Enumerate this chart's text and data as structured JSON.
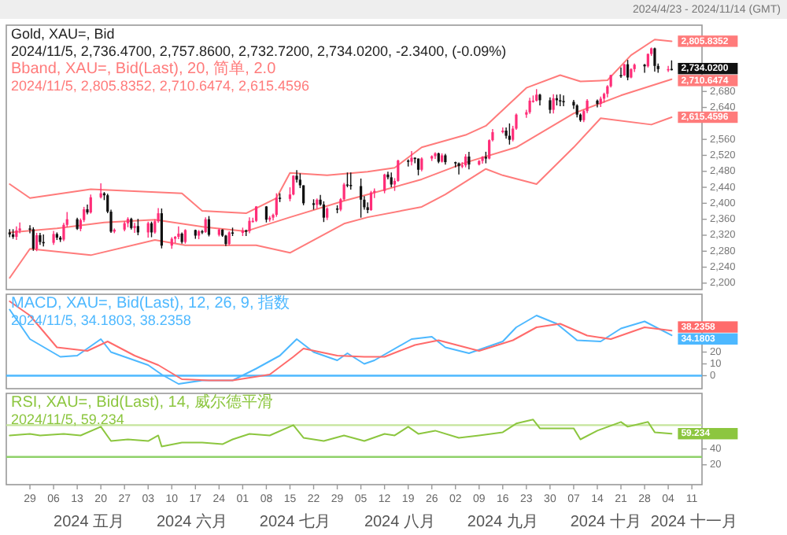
{
  "chart_data": [
    {
      "type": "candlestick",
      "title": "Gold, XAU=, Bid",
      "subtitle": "2024/11/5, 2,736.4700, 2,757.8600, 2,732.7200, 2,734.0200, -2.3400, (-0.09%)",
      "annotations": [
        "Bband, XAU=, Bid(Last), 20, 简单, 2.0",
        "2024/11/5, 2,805.8352, 2,710.6474, 2,615.4596",
        "2024/4/23 - 2024/11/14 (GMT)"
      ],
      "colors": [
        "#111111",
        "#111111",
        "#ff2d78",
        "#ff2d78",
        "#111111",
        "#111111",
        "#ff2d78",
        "#111111",
        "#111111",
        "#ff2d78",
        "#111111",
        "#111111",
        "#ff2d78",
        "#ff2d78",
        "#111111",
        "#ff2d78",
        "#ff2d78",
        "#111111",
        "#ff2d78",
        "#ff2d78",
        "#111111",
        "#111111",
        "#111111",
        "#ff2d78",
        "#ff2d78",
        "#ff2d78",
        "#111111",
        "#ff2d78",
        "#111111",
        "#ff2d78",
        "#111111",
        "#ff2d78",
        "#ff2d78",
        "#111111",
        "#ff2d78",
        "#ff2d78",
        "#ff2d78",
        "#111111",
        "#ff2d78",
        "#111111",
        "#ff2d78",
        "#111111",
        "#ff2d78",
        "#111111",
        "#ff2d78",
        "#111111",
        "#111111",
        "#ff2d78",
        "#111111",
        "#ff2d78",
        "#111111",
        "#ff2d78",
        "#ff2d78",
        "#ff2d78",
        "#111111",
        "#ff2d78",
        "#ff2d78",
        "#ff2d78",
        "#111111",
        "#ff2d78",
        "#ff2d78",
        "#111111",
        "#111111",
        "#111111",
        "#111111",
        "#ff2d78",
        "#111111",
        "#111111",
        "#ff2d78",
        "#111111",
        "#ff2d78",
        "#ff2d78",
        "#111111",
        "#111111",
        "#111111",
        "#111111",
        "#111111",
        "#ff2d78",
        "#ff2d78",
        "#ff2d78",
        "#111111",
        "#111111",
        "#ff2d78",
        "#ff2d78",
        "#111111",
        "#ff2d78",
        "#111111",
        "#111111",
        "#ff2d78",
        "#ff2d78",
        "#ff2d78",
        "#111111",
        "#ff2d78",
        "#111111",
        "#111111",
        "#111111",
        "#ff2d78",
        "#ff2d78",
        "#111111",
        "#ff2d78",
        "#ff2d78",
        "#111111",
        "#ff2d78",
        "#ff2d78",
        "#ff2d78",
        "#111111",
        "#111111",
        "#ff2d78",
        "#ff2d78",
        "#ff2d78",
        "#ff2d78",
        "#ff2d78",
        "#ff2d78",
        "#111111",
        "#111111",
        "#ff2d78",
        "#111111",
        "#111111",
        "#111111",
        "#111111",
        "#111111",
        "#111111",
        "#ff2d78",
        "#ff2d78",
        "#111111",
        "#ff2d78",
        "#ff2d78",
        "#ff2d78",
        "#ff2d78",
        "#111111",
        "#ff2d78",
        "#111111",
        "#ff2d78",
        "#ff2d78",
        "#111111",
        "#ff2d78",
        "#ff2d78",
        "#111111",
        "#111111",
        "#ff2d78",
        "#111111"
      ],
      "value_labels": [
        null,
        null,
        null,
        null,
        null,
        null,
        null,
        null,
        null,
        null,
        null,
        null,
        null,
        null,
        null,
        null,
        null,
        null,
        null,
        null,
        null,
        null,
        null,
        null,
        null,
        null,
        null,
        null,
        null,
        null,
        null,
        null,
        null,
        null,
        null,
        null,
        null,
        null,
        null,
        null,
        null,
        null,
        null,
        null,
        null,
        null,
        null,
        null,
        null,
        null,
        null,
        null,
        null,
        null,
        null,
        null,
        null,
        null,
        null,
        null,
        null,
        null,
        null,
        null,
        null,
        null,
        null,
        null,
        null,
        null,
        null,
        null,
        null,
        null,
        null,
        null,
        null,
        null,
        null,
        null,
        null,
        null,
        null,
        null,
        null,
        null,
        null,
        null,
        null,
        null,
        null,
        null,
        null,
        null,
        null,
        null,
        null,
        null,
        null,
        null,
        null,
        null,
        null,
        null,
        null,
        null,
        null,
        null,
        null,
        null,
        null,
        null,
        null,
        null,
        null,
        null,
        null,
        null,
        null,
        null,
        null,
        null,
        null,
        null,
        null,
        null,
        null,
        null,
        null,
        null,
        null,
        null,
        null,
        null,
        null,
        null,
        null,
        null,
        null,
        null,
        "2,734.0200"
      ],
      "xlim": [
        "2024-04-22",
        "2024-11-14"
      ],
      "ylim": [
        2184,
        2846
      ],
      "yticks": [
        {
          "value": 2200,
          "label": "2,200"
        },
        {
          "value": 2240,
          "label": "2,240"
        },
        {
          "value": 2280,
          "label": "2,280"
        },
        {
          "value": 2320,
          "label": "2,320"
        },
        {
          "value": 2360,
          "label": "2,360"
        },
        {
          "value": 2400,
          "label": "2,400"
        },
        {
          "value": 2440,
          "label": "2,440"
        },
        {
          "value": 2480,
          "label": "2,480"
        },
        {
          "value": 2520,
          "label": "2,520"
        },
        {
          "value": 2560,
          "label": "2,560"
        },
        {
          "value": 2640,
          "label": "2,640"
        },
        {
          "value": 2680,
          "label": "2,680"
        }
      ],
      "tick_labels": "y",
      "x": [
        "2024-04-23",
        "2024-04-24",
        "2024-04-25",
        "2024-04-26",
        "2024-04-29",
        "2024-04-30",
        "2024-05-01",
        "2024-05-02",
        "2024-05-03",
        "2024-05-06",
        "2024-05-07",
        "2024-05-08",
        "2024-05-09",
        "2024-05-10",
        "2024-05-13",
        "2024-05-14",
        "2024-05-15",
        "2024-05-16",
        "2024-05-17",
        "2024-05-20",
        "2024-05-21",
        "2024-05-22",
        "2024-05-23",
        "2024-05-24",
        "2024-05-27",
        "2024-05-28",
        "2024-05-29",
        "2024-05-30",
        "2024-05-31",
        "2024-06-03",
        "2024-06-04",
        "2024-06-05",
        "2024-06-06",
        "2024-06-07",
        "2024-06-10",
        "2024-06-11",
        "2024-06-12",
        "2024-06-13",
        "2024-06-14",
        "2024-06-17",
        "2024-06-18",
        "2024-06-19",
        "2024-06-20",
        "2024-06-21",
        "2024-06-24",
        "2024-06-25",
        "2024-06-26",
        "2024-06-27",
        "2024-06-28",
        "2024-07-01",
        "2024-07-02",
        "2024-07-03",
        "2024-07-04",
        "2024-07-05",
        "2024-07-08",
        "2024-07-09",
        "2024-07-10",
        "2024-07-11",
        "2024-07-12",
        "2024-07-15",
        "2024-07-16",
        "2024-07-17",
        "2024-07-18",
        "2024-07-19",
        "2024-07-22",
        "2024-07-23",
        "2024-07-24",
        "2024-07-25",
        "2024-07-26",
        "2024-07-29",
        "2024-07-30",
        "2024-07-31",
        "2024-08-01",
        "2024-08-02",
        "2024-08-05",
        "2024-08-06",
        "2024-08-07",
        "2024-08-08",
        "2024-08-09",
        "2024-08-12",
        "2024-08-13",
        "2024-08-14",
        "2024-08-15",
        "2024-08-16",
        "2024-08-19",
        "2024-08-20",
        "2024-08-21",
        "2024-08-22",
        "2024-08-23",
        "2024-08-26",
        "2024-08-27",
        "2024-08-28",
        "2024-08-29",
        "2024-08-30",
        "2024-09-02",
        "2024-09-03",
        "2024-09-04",
        "2024-09-05",
        "2024-09-06",
        "2024-09-09",
        "2024-09-10",
        "2024-09-11",
        "2024-09-12",
        "2024-09-13",
        "2024-09-16",
        "2024-09-17",
        "2024-09-18",
        "2024-09-19",
        "2024-09-20",
        "2024-09-23",
        "2024-09-24",
        "2024-09-25",
        "2024-09-26",
        "2024-09-27",
        "2024-09-30",
        "2024-10-01",
        "2024-10-02",
        "2024-10-03",
        "2024-10-04",
        "2024-10-07",
        "2024-10-08",
        "2024-10-09",
        "2024-10-10",
        "2024-10-11",
        "2024-10-14",
        "2024-10-15",
        "2024-10-16",
        "2024-10-17",
        "2024-10-18",
        "2024-10-21",
        "2024-10-22",
        "2024-10-23",
        "2024-10-24",
        "2024-10-25",
        "2024-10-28",
        "2024-10-29",
        "2024-10-30",
        "2024-10-31",
        "2024-11-01",
        "2024-11-04",
        "2024-11-05"
      ],
      "ohlc": [
        [
          2327,
          2335,
          2315,
          2322
        ],
        [
          2322,
          2335,
          2311,
          2316
        ],
        [
          2316,
          2342,
          2308,
          2332
        ],
        [
          2332,
          2352,
          2325,
          2337
        ],
        [
          2337,
          2345,
          2325,
          2335
        ],
        [
          2335,
          2340,
          2281,
          2286
        ],
        [
          2286,
          2326,
          2280,
          2320
        ],
        [
          2320,
          2326,
          2296,
          2303
        ],
        [
          2303,
          2322,
          2292,
          2301
        ],
        [
          2301,
          2331,
          2296,
          2323
        ],
        [
          2323,
          2327,
          2308,
          2314
        ],
        [
          2314,
          2318,
          2303,
          2309
        ],
        [
          2309,
          2351,
          2305,
          2346
        ],
        [
          2346,
          2378,
          2340,
          2360
        ],
        [
          2360,
          2364,
          2333,
          2336
        ],
        [
          2336,
          2362,
          2330,
          2358
        ],
        [
          2358,
          2391,
          2353,
          2385
        ],
        [
          2385,
          2397,
          2372,
          2377
        ],
        [
          2377,
          2422,
          2374,
          2415
        ],
        [
          2415,
          2450,
          2412,
          2425
        ],
        [
          2425,
          2428,
          2408,
          2420
        ],
        [
          2420,
          2424,
          2375,
          2379
        ],
        [
          2379,
          2384,
          2326,
          2329
        ],
        [
          2329,
          2337,
          2325,
          2334
        ],
        [
          2334,
          2355,
          2330,
          2350
        ],
        [
          2350,
          2365,
          2340,
          2361
        ],
        [
          2361,
          2364,
          2334,
          2338
        ],
        [
          2338,
          2351,
          2326,
          2343
        ],
        [
          2343,
          2361,
          2320,
          2327
        ],
        [
          2327,
          2354,
          2314,
          2350
        ],
        [
          2350,
          2354,
          2315,
          2327
        ],
        [
          2327,
          2360,
          2324,
          2355
        ],
        [
          2355,
          2388,
          2351,
          2375
        ],
        [
          2375,
          2387,
          2287,
          2294
        ],
        [
          2294,
          2315,
          2286,
          2311
        ],
        [
          2311,
          2318,
          2300,
          2316
        ],
        [
          2316,
          2342,
          2310,
          2324
        ],
        [
          2324,
          2327,
          2299,
          2303
        ],
        [
          2303,
          2335,
          2299,
          2333
        ],
        [
          2333,
          2334,
          2311,
          2319
        ],
        [
          2319,
          2333,
          2310,
          2330
        ],
        [
          2330,
          2333,
          2323,
          2328
        ],
        [
          2328,
          2365,
          2326,
          2360
        ],
        [
          2360,
          2368,
          2317,
          2321
        ],
        [
          2321,
          2337,
          2317,
          2334
        ],
        [
          2334,
          2335,
          2316,
          2319
        ],
        [
          2319,
          2321,
          2293,
          2298
        ],
        [
          2298,
          2330,
          2295,
          2327
        ],
        [
          2327,
          2339,
          2318,
          2326
        ],
        [
          2326,
          2339,
          2318,
          2332
        ],
        [
          2332,
          2334,
          2318,
          2330
        ],
        [
          2330,
          2365,
          2325,
          2356
        ],
        [
          2356,
          2364,
          2352,
          2356
        ],
        [
          2356,
          2393,
          2353,
          2392
        ],
        [
          2392,
          2393,
          2352,
          2359
        ],
        [
          2359,
          2368,
          2354,
          2364
        ],
        [
          2364,
          2374,
          2357,
          2371
        ],
        [
          2371,
          2425,
          2366,
          2414
        ],
        [
          2414,
          2425,
          2403,
          2411
        ],
        [
          2411,
          2440,
          2405,
          2422
        ],
        [
          2422,
          2470,
          2420,
          2469
        ],
        [
          2469,
          2483,
          2452,
          2459
        ],
        [
          2459,
          2475,
          2438,
          2445
        ],
        [
          2445,
          2445,
          2395,
          2400
        ],
        [
          2400,
          2410,
          2384,
          2396
        ],
        [
          2396,
          2412,
          2387,
          2409
        ],
        [
          2409,
          2421,
          2394,
          2397
        ],
        [
          2397,
          2405,
          2353,
          2364
        ],
        [
          2364,
          2390,
          2358,
          2387
        ],
        [
          2387,
          2395,
          2375,
          2384
        ],
        [
          2384,
          2413,
          2380,
          2410
        ],
        [
          2410,
          2451,
          2406,
          2447
        ],
        [
          2447,
          2477,
          2440,
          2446
        ],
        [
          2446,
          2477,
          2434,
          2443
        ],
        [
          2443,
          2462,
          2364,
          2409
        ],
        [
          2409,
          2418,
          2384,
          2390
        ],
        [
          2390,
          2402,
          2375,
          2383
        ],
        [
          2383,
          2431,
          2381,
          2427
        ],
        [
          2427,
          2437,
          2413,
          2431
        ],
        [
          2431,
          2474,
          2425,
          2472
        ],
        [
          2472,
          2479,
          2460,
          2465
        ],
        [
          2465,
          2477,
          2440,
          2447
        ],
        [
          2447,
          2463,
          2431,
          2456
        ],
        [
          2456,
          2509,
          2454,
          2507
        ],
        [
          2507,
          2510,
          2492,
          2504
        ],
        [
          2504,
          2531,
          2495,
          2514
        ],
        [
          2514,
          2515,
          2500,
          2512
        ],
        [
          2512,
          2512,
          2470,
          2484
        ],
        [
          2484,
          2515,
          2480,
          2512
        ],
        [
          2512,
          2520,
          2506,
          2518
        ],
        [
          2518,
          2528,
          2511,
          2525
        ],
        [
          2525,
          2527,
          2500,
          2504
        ],
        [
          2504,
          2525,
          2502,
          2520
        ],
        [
          2520,
          2524,
          2497,
          2503
        ],
        [
          2503,
          2504,
          2490,
          2500
        ],
        [
          2500,
          2502,
          2472,
          2493
        ],
        [
          2493,
          2503,
          2488,
          2495
        ],
        [
          2495,
          2523,
          2490,
          2517
        ],
        [
          2517,
          2529,
          2485,
          2497
        ],
        [
          2497,
          2508,
          2495,
          2506
        ],
        [
          2506,
          2518,
          2499,
          2516
        ],
        [
          2516,
          2529,
          2500,
          2512
        ],
        [
          2512,
          2560,
          2510,
          2558
        ],
        [
          2558,
          2586,
          2555,
          2578
        ],
        [
          2578,
          2590,
          2575,
          2582
        ],
        [
          2582,
          2590,
          2562,
          2569
        ],
        [
          2569,
          2600,
          2547,
          2559
        ],
        [
          2559,
          2594,
          2555,
          2587
        ],
        [
          2587,
          2625,
          2584,
          2622
        ],
        [
          2622,
          2634,
          2614,
          2628
        ],
        [
          2628,
          2664,
          2624,
          2657
        ],
        [
          2657,
          2670,
          2652,
          2657
        ],
        [
          2657,
          2686,
          2655,
          2672
        ],
        [
          2672,
          2674,
          2645,
          2658
        ],
        [
          2658,
          2665,
          2625,
          2634
        ],
        [
          2634,
          2673,
          2625,
          2663
        ],
        [
          2663,
          2672,
          2645,
          2658
        ],
        [
          2658,
          2673,
          2643,
          2656
        ],
        [
          2656,
          2670,
          2643,
          2654
        ],
        [
          2654,
          2659,
          2636,
          2645
        ],
        [
          2645,
          2648,
          2615,
          2622
        ],
        [
          2622,
          2625,
          2604,
          2608
        ],
        [
          2608,
          2634,
          2603,
          2631
        ],
        [
          2631,
          2661,
          2626,
          2657
        ],
        [
          2657,
          2660,
          2640,
          2649
        ],
        [
          2649,
          2667,
          2641,
          2662
        ],
        [
          2662,
          2677,
          2652,
          2674
        ],
        [
          2674,
          2696,
          2665,
          2693
        ],
        [
          2693,
          2722,
          2690,
          2721
        ],
        [
          2721,
          2740,
          2714,
          2720
        ],
        [
          2720,
          2749,
          2719,
          2748
        ],
        [
          2748,
          2759,
          2708,
          2715
        ],
        [
          2715,
          2738,
          2713,
          2736
        ],
        [
          2736,
          2750,
          2729,
          2747
        ],
        [
          2747,
          2749,
          2727,
          2743
        ],
        [
          2743,
          2775,
          2740,
          2774
        ],
        [
          2774,
          2790,
          2769,
          2788
        ],
        [
          2788,
          2790,
          2730,
          2744
        ],
        [
          2744,
          2750,
          2727,
          2736
        ],
        [
          2736,
          2744,
          2729,
          2736
        ],
        [
          2736.47,
          2757.86,
          2732.72,
          2734.02
        ]
      ],
      "series": [
        {
          "type": "line",
          "color": "#ff7b7b",
          "x": [
            "2024-04-23",
            "2024-04-29",
            "2024-05-17",
            "2024-06-13",
            "2024-06-19",
            "2024-07-02",
            "2024-07-11",
            "2024-07-15",
            "2024-07-26",
            "2024-08-07",
            "2024-08-15",
            "2024-08-23",
            "2024-09-05",
            "2024-09-11",
            "2024-09-23",
            "2024-10-03",
            "2024-10-09",
            "2024-10-17",
            "2024-10-24",
            "2024-10-31",
            "2024-11-05"
          ],
          "values": [
            2448,
            2413,
            2435,
            2425,
            2381,
            2375,
            2413,
            2476,
            2470,
            2479,
            2489,
            2540,
            2571,
            2594,
            2689,
            2721,
            2705,
            2708,
            2771,
            2810,
            2805.8352
          ],
          "value_labels": [
            null,
            null,
            null,
            null,
            null,
            null,
            null,
            null,
            null,
            null,
            null,
            null,
            null,
            null,
            null,
            null,
            null,
            null,
            null,
            null,
            "2,805.8352"
          ]
        },
        {
          "type": "line",
          "color": "#ff7b7b",
          "x": [
            "2024-04-23",
            "2024-05-07",
            "2024-05-21",
            "2024-06-05",
            "2024-06-20",
            "2024-07-02",
            "2024-07-15",
            "2024-07-31",
            "2024-08-07",
            "2024-08-23",
            "2024-09-05",
            "2024-09-20",
            "2024-10-07",
            "2024-10-21",
            "2024-11-05"
          ],
          "values": [
            2327,
            2337,
            2352,
            2359,
            2340,
            2330,
            2365,
            2406,
            2422,
            2460,
            2502,
            2540,
            2625,
            2670,
            2710.6474
          ],
          "value_labels": [
            null,
            null,
            null,
            null,
            null,
            null,
            null,
            null,
            null,
            null,
            null,
            null,
            null,
            null,
            "2,710.6474"
          ]
        },
        {
          "type": "line",
          "color": "#ff7b7b",
          "x": [
            "2024-04-23",
            "2024-04-29",
            "2024-05-17",
            "2024-06-05",
            "2024-06-14",
            "2024-07-05",
            "2024-07-15",
            "2024-07-31",
            "2024-08-07",
            "2024-08-23",
            "2024-08-30",
            "2024-09-11",
            "2024-09-16",
            "2024-09-26",
            "2024-10-07",
            "2024-10-15",
            "2024-10-30",
            "2024-11-05"
          ],
          "values": [
            2213,
            2286,
            2270,
            2308,
            2295,
            2295,
            2276,
            2349,
            2365,
            2391,
            2422,
            2486,
            2470,
            2448,
            2540,
            2613,
            2597,
            2615.4596
          ],
          "value_labels": [
            null,
            null,
            null,
            null,
            null,
            null,
            null,
            null,
            null,
            null,
            null,
            null,
            null,
            null,
            null,
            null,
            null,
            "2,615.4596"
          ]
        }
      ]
    },
    {
      "type": "line",
      "title": "MACD, XAU=, Bid(Last), 12, 26, 9, 指数",
      "subtitle": "2024/11/5, 34.1803, 38.2358",
      "xlim": [
        "2024-04-22",
        "2024-11-14"
      ],
      "ylim": [
        -11,
        69
      ],
      "yticks": [
        0,
        10,
        20
      ],
      "tick_labels": "y",
      "ref_lines": [
        {
          "axis": "y",
          "value": 0,
          "color": "#4db8ff"
        }
      ],
      "series": [
        {
          "color": "#4db8ff",
          "x": [
            "2024-04-23",
            "2024-04-29",
            "2024-05-08",
            "2024-05-13",
            "2024-05-20",
            "2024-05-23",
            "2024-06-03",
            "2024-06-07",
            "2024-06-12",
            "2024-06-19",
            "2024-06-25",
            "2024-06-28",
            "2024-07-05",
            "2024-07-12",
            "2024-07-17",
            "2024-07-22",
            "2024-07-29",
            "2024-08-01",
            "2024-08-06",
            "2024-08-09",
            "2024-08-20",
            "2024-08-26",
            "2024-08-30",
            "2024-09-06",
            "2024-09-16",
            "2024-09-20",
            "2024-09-26",
            "2024-10-02",
            "2024-10-08",
            "2024-10-15",
            "2024-10-21",
            "2024-10-28",
            "2024-11-05"
          ],
          "values": [
            56,
            31,
            16,
            17,
            31,
            20,
            9,
            1,
            -7,
            -4,
            -4,
            -4,
            6,
            17,
            31,
            20,
            13,
            19,
            10,
            13,
            31,
            33,
            24,
            19,
            29,
            41,
            51,
            44,
            30,
            29,
            40,
            46,
            34.1803
          ],
          "value_labels": [
            null,
            null,
            null,
            null,
            null,
            null,
            null,
            null,
            null,
            null,
            null,
            null,
            null,
            null,
            null,
            null,
            null,
            null,
            null,
            null,
            null,
            null,
            null,
            null,
            null,
            null,
            null,
            null,
            null,
            null,
            null,
            null,
            "34.1803"
          ]
        },
        {
          "color": "#ff6b6b",
          "x": [
            "2024-04-23",
            "2024-04-29",
            "2024-05-07",
            "2024-05-16",
            "2024-05-22",
            "2024-05-30",
            "2024-06-06",
            "2024-06-13",
            "2024-06-21",
            "2024-06-28",
            "2024-07-09",
            "2024-07-16",
            "2024-07-19",
            "2024-07-29",
            "2024-08-06",
            "2024-08-12",
            "2024-08-21",
            "2024-08-28",
            "2024-09-09",
            "2024-09-19",
            "2024-09-26",
            "2024-10-03",
            "2024-10-11",
            "2024-10-18",
            "2024-10-28",
            "2024-11-05"
          ],
          "values": [
            63,
            51,
            24,
            21,
            29,
            17,
            9,
            -3,
            -4,
            -4,
            1,
            16,
            23,
            17,
            16,
            16,
            26,
            30,
            21,
            30,
            41,
            44,
            34,
            31,
            41,
            38.2358
          ],
          "value_labels": [
            null,
            null,
            null,
            null,
            null,
            null,
            null,
            null,
            null,
            null,
            null,
            null,
            null,
            null,
            null,
            null,
            null,
            null,
            null,
            null,
            null,
            null,
            null,
            null,
            null,
            "38.2358"
          ]
        }
      ]
    },
    {
      "type": "line",
      "title": "RSI, XAU=, Bid(Last), 14, 威尔德平滑",
      "subtitle": "2024/11/5, 59.234",
      "xlim": [
        "2024-04-22",
        "2024-11-14"
      ],
      "ylim": [
        -5,
        110
      ],
      "yticks": [
        20,
        40
      ],
      "xticks": [
        {
          "value": "2024-04-29",
          "label": "29"
        },
        {
          "value": "2024-05-06",
          "label": "06"
        },
        {
          "value": "2024-05-13",
          "label": "13"
        },
        {
          "value": "2024-05-20",
          "label": "20"
        },
        {
          "value": "2024-05-27",
          "label": "27"
        },
        {
          "value": "2024-06-03",
          "label": "03"
        },
        {
          "value": "2024-06-10",
          "label": "10"
        },
        {
          "value": "2024-06-17",
          "label": "17"
        },
        {
          "value": "2024-06-24",
          "label": "24"
        },
        {
          "value": "2024-07-01",
          "label": "01"
        },
        {
          "value": "2024-07-08",
          "label": "08"
        },
        {
          "value": "2024-07-15",
          "label": "15"
        },
        {
          "value": "2024-07-22",
          "label": "22"
        },
        {
          "value": "2024-07-29",
          "label": "29"
        },
        {
          "value": "2024-08-05",
          "label": "05"
        },
        {
          "value": "2024-08-12",
          "label": "12"
        },
        {
          "value": "2024-08-19",
          "label": "19"
        },
        {
          "value": "2024-08-26",
          "label": "26"
        },
        {
          "value": "2024-09-02",
          "label": "02"
        },
        {
          "value": "2024-09-09",
          "label": "09"
        },
        {
          "value": "2024-09-16",
          "label": "16"
        },
        {
          "value": "2024-09-23",
          "label": "23"
        },
        {
          "value": "2024-09-30",
          "label": "30"
        },
        {
          "value": "2024-10-07",
          "label": "07"
        },
        {
          "value": "2024-10-14",
          "label": "14"
        },
        {
          "value": "2024-10-21",
          "label": "21"
        },
        {
          "value": "2024-10-28",
          "label": "28"
        },
        {
          "value": "2024-11-04",
          "label": "04"
        },
        {
          "value": "2024-11-11",
          "label": "11"
        }
      ],
      "annotations": [
        "2024 五月",
        "2024 六月",
        "2024 七月",
        "2024 八月",
        "2024 九月",
        "2024 十月",
        "2024 十一月"
      ],
      "ref_lines": [
        {
          "axis": "y",
          "value": 70,
          "color": "#c5e59b"
        },
        {
          "axis": "y",
          "value": 30,
          "color": "#8fd16a"
        }
      ],
      "series": [
        {
          "color": "#8cc63f",
          "x": [
            "2024-04-23",
            "2024-04-29",
            "2024-05-02",
            "2024-05-09",
            "2024-05-14",
            "2024-05-20",
            "2024-05-23",
            "2024-05-28",
            "2024-06-03",
            "2024-06-06",
            "2024-06-07",
            "2024-06-13",
            "2024-06-19",
            "2024-06-25",
            "2024-06-28",
            "2024-07-03",
            "2024-07-09",
            "2024-07-16",
            "2024-07-19",
            "2024-07-25",
            "2024-07-31",
            "2024-08-06",
            "2024-08-12",
            "2024-08-15",
            "2024-08-19",
            "2024-08-22",
            "2024-08-27",
            "2024-09-03",
            "2024-09-09",
            "2024-09-16",
            "2024-09-20",
            "2024-09-25",
            "2024-09-27",
            "2024-10-07",
            "2024-10-09",
            "2024-10-14",
            "2024-10-21",
            "2024-10-23",
            "2024-10-29",
            "2024-10-31",
            "2024-11-05"
          ],
          "values": [
            57,
            59,
            57,
            59,
            57,
            68,
            50,
            52,
            50,
            57,
            43,
            48,
            48,
            46,
            52,
            59,
            57,
            70,
            54,
            50,
            57,
            50,
            59,
            57,
            68,
            59,
            63,
            54,
            57,
            61,
            72,
            77,
            66,
            66,
            52,
            63,
            74,
            68,
            74,
            61,
            59.234
          ],
          "value_labels": [
            null,
            null,
            null,
            null,
            null,
            null,
            null,
            null,
            null,
            null,
            null,
            null,
            null,
            null,
            null,
            null,
            null,
            null,
            null,
            null,
            null,
            null,
            null,
            null,
            null,
            null,
            null,
            null,
            null,
            null,
            null,
            null,
            null,
            null,
            null,
            null,
            null,
            null,
            null,
            null,
            "59.234"
          ]
        }
      ]
    }
  ]
}
